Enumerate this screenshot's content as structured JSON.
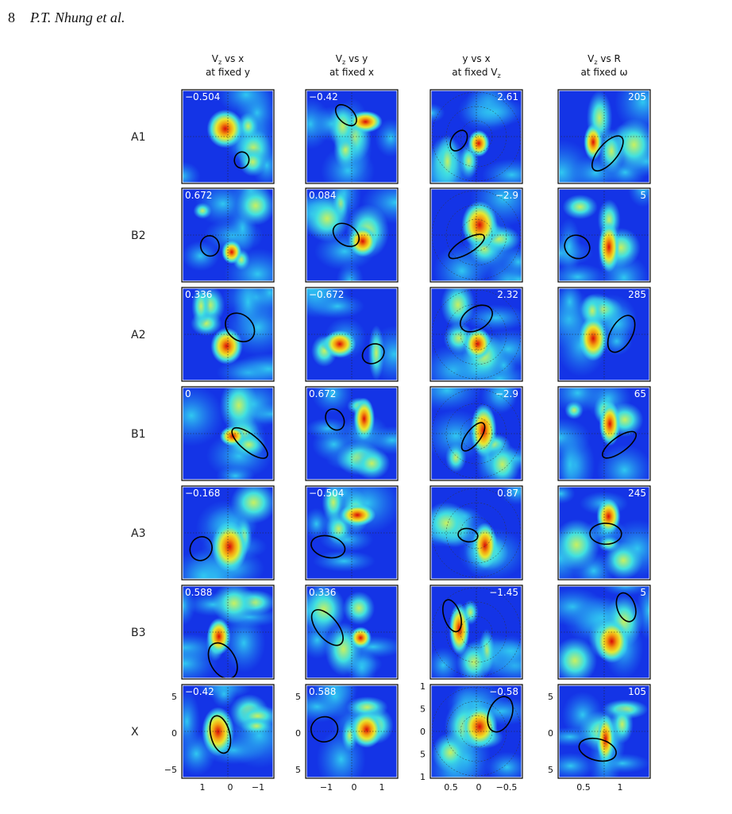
{
  "header": {
    "page": "8",
    "authors": "P.T. Nhung et al."
  },
  "figure": {
    "columns": [
      {
        "line1": [
          {
            "text": "V"
          },
          {
            "text": "z",
            "sub": true
          },
          {
            "text": " vs x"
          }
        ],
        "line2": [
          {
            "text": "at fixed y"
          }
        ]
      },
      {
        "line1": [
          {
            "text": "V"
          },
          {
            "text": "z",
            "sub": true
          },
          {
            "text": " vs y"
          }
        ],
        "line2": [
          {
            "text": "at fixed x"
          }
        ]
      },
      {
        "line1": [
          {
            "text": "y vs x"
          }
        ],
        "line2": [
          {
            "text": "at fixed V"
          },
          {
            "text": "z",
            "sub": true
          }
        ]
      },
      {
        "line1": [
          {
            "text": "V"
          },
          {
            "text": "z",
            "sub": true
          },
          {
            "text": " vs R"
          }
        ],
        "line2": [
          {
            "text": "at fixed ω"
          }
        ]
      }
    ],
    "rows": [
      {
        "label": "A1",
        "values": [
          "−0.504",
          "−0.42",
          "2.61",
          "205"
        ]
      },
      {
        "label": "B2",
        "values": [
          "0.672",
          "0.084",
          "−2.9",
          "5"
        ]
      },
      {
        "label": "A2",
        "values": [
          "0.336",
          "−0.672",
          "2.32",
          "285"
        ]
      },
      {
        "label": "B1",
        "values": [
          "0",
          "0.672",
          "−2.9",
          "65"
        ]
      },
      {
        "label": "A3",
        "values": [
          "−0.168",
          "−0.504",
          "0.87",
          "245"
        ]
      },
      {
        "label": "B3",
        "values": [
          "0.588",
          "0.336",
          "−1.45",
          "5"
        ]
      },
      {
        "label": "X",
        "values": [
          "−0.42",
          "0.588",
          "−0.58",
          "105"
        ]
      }
    ],
    "axes": [
      {
        "yticks": [
          "5",
          "0",
          "−5"
        ],
        "xticks": [
          "1",
          "0",
          "−1"
        ]
      },
      {
        "yticks": [
          "5",
          "0",
          "5"
        ],
        "xticks": [
          "−1",
          "0",
          "1"
        ]
      },
      {
        "yticks": [
          "1",
          "5",
          "0",
          "5",
          "1"
        ],
        "xticks": [
          "0.5",
          "0",
          "−0.5"
        ]
      },
      {
        "yticks": [
          "5",
          "0",
          "5"
        ],
        "xticks": [
          "0.5",
          "1"
        ]
      }
    ]
  }
}
